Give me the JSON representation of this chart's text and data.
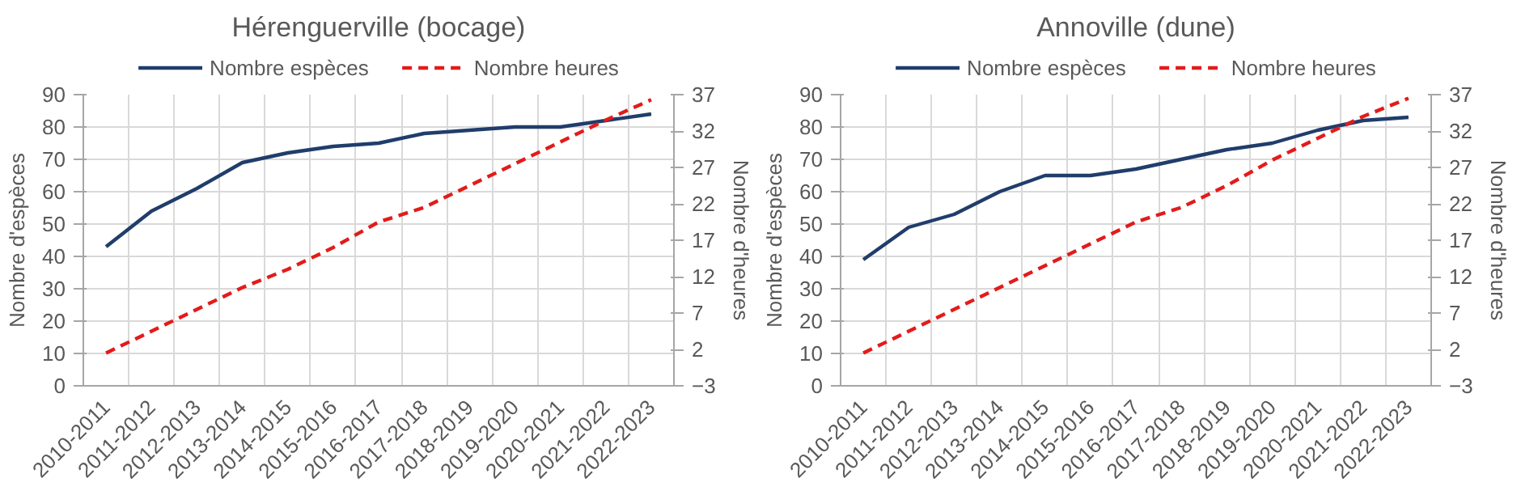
{
  "chart_data": [
    {
      "type": "line",
      "title": "Hérenguerville (bocage)",
      "ylabel": "Nombre d'espèces",
      "y2label": "Nombre d'heures",
      "categories": [
        "2010-2011",
        "2011-2012",
        "2012-2013",
        "2013-2014",
        "2014-2015",
        "2015-2016",
        "2016-2017",
        "2017-2018",
        "2018-2019",
        "2019-2020",
        "2020-2021",
        "2021-2022",
        "2022-2023"
      ],
      "series": [
        {
          "name": "Nombre espèces",
          "color": "#203d6b",
          "line_style": "solid",
          "values": [
            43,
            54,
            61,
            69,
            72,
            74,
            75,
            78,
            79,
            80,
            80,
            82,
            84
          ]
        },
        {
          "name": "Nombre heures",
          "color": "#e31b1b",
          "line_style": "dashed",
          "axis": "y2",
          "values": [
            1.5,
            4.5,
            7.5,
            10.5,
            13,
            16,
            19.5,
            21.5,
            24.5,
            27.5,
            30.5,
            33.5,
            36.3
          ]
        }
      ],
      "ylim": [
        0,
        90
      ],
      "yticks": [
        0,
        10,
        20,
        30,
        40,
        50,
        60,
        70,
        80,
        90
      ],
      "y2lim": [
        -3,
        37
      ],
      "y2ticks": [
        -3,
        2,
        7,
        12,
        17,
        22,
        27,
        32,
        37
      ],
      "grid": true,
      "legend": "top"
    },
    {
      "type": "line",
      "title": "Annoville (dune)",
      "ylabel": "Nombre d'espèces",
      "y2label": "Nombre d'heures",
      "categories": [
        "2010-2011",
        "2011-2012",
        "2012-2013",
        "2013-2014",
        "2014-2015",
        "2015-2016",
        "2016-2017",
        "2017-2018",
        "2018-2019",
        "2019-2020",
        "2020-2021",
        "2021-2022",
        "2022-2023"
      ],
      "series": [
        {
          "name": "Nombre espèces",
          "color": "#203d6b",
          "line_style": "solid",
          "values": [
            39,
            49,
            53,
            60,
            65,
            65,
            67,
            70,
            73,
            75,
            79,
            82,
            83
          ]
        },
        {
          "name": "Nombre heures",
          "color": "#e31b1b",
          "line_style": "dashed",
          "axis": "y2",
          "values": [
            1.5,
            4.5,
            7.5,
            10.5,
            13.5,
            16.5,
            19.5,
            21.5,
            24.5,
            28,
            31,
            34,
            36.5
          ]
        }
      ],
      "ylim": [
        0,
        90
      ],
      "yticks": [
        0,
        10,
        20,
        30,
        40,
        50,
        60,
        70,
        80,
        90
      ],
      "y2lim": [
        -3,
        37
      ],
      "y2ticks": [
        -3,
        2,
        7,
        12,
        17,
        22,
        27,
        32,
        37
      ],
      "grid": true,
      "legend": "top"
    }
  ]
}
